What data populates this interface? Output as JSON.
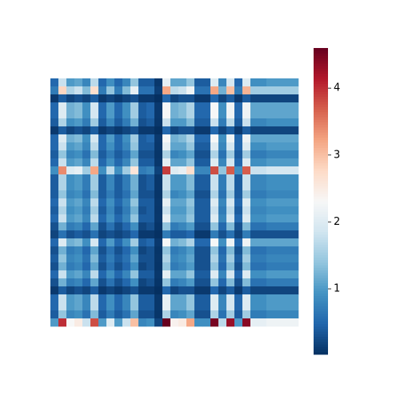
{
  "chart_data": {
    "type": "heatmap",
    "colormap": "RdBu_r",
    "clim": [
      0.02,
      4.6
    ],
    "cticks": [
      1,
      2,
      3,
      4
    ],
    "values": [
      [
        0.5,
        1.8,
        1.0,
        1.1,
        0.8,
        1.7,
        0.5,
        0.9,
        0.5,
        0.8,
        1.4,
        0.4,
        0.4,
        0.09,
        2.1,
        1.1,
        1.1,
        1.4,
        0.4,
        0.4,
        2.0,
        0.8,
        1.9,
        0.5,
        2.0,
        0.9,
        0.9,
        1.0,
        1.0,
        1.0,
        1.0
      ],
      [
        0.7,
        2.8,
        1.6,
        1.8,
        1.3,
        2.7,
        0.7,
        1.4,
        0.7,
        1.3,
        2.1,
        0.6,
        0.6,
        0.14,
        3.2,
        1.7,
        1.8,
        2.2,
        0.6,
        0.6,
        3.2,
        1.2,
        3.0,
        0.7,
        3.1,
        1.5,
        1.5,
        1.5,
        1.5,
        1.5,
        1.5
      ],
      [
        0.1,
        0.4,
        0.2,
        0.3,
        0.2,
        0.4,
        0.1,
        0.2,
        0.1,
        0.2,
        0.3,
        0.1,
        0.1,
        0.02,
        0.5,
        0.2,
        0.3,
        0.3,
        0.1,
        0.1,
        0.5,
        0.2,
        0.4,
        0.1,
        0.4,
        0.2,
        0.2,
        0.2,
        0.2,
        0.2,
        0.2
      ],
      [
        0.5,
        2.0,
        1.2,
        1.3,
        0.9,
        1.9,
        0.5,
        1.0,
        0.5,
        0.9,
        1.5,
        0.4,
        0.5,
        0.1,
        2.3,
        1.2,
        1.3,
        1.6,
        0.5,
        0.5,
        2.3,
        0.9,
        2.2,
        0.5,
        2.2,
        1.1,
        1.1,
        1.1,
        1.1,
        1.1,
        1.1
      ],
      [
        0.5,
        2.0,
        1.2,
        1.3,
        0.9,
        1.9,
        0.5,
        1.0,
        0.5,
        0.9,
        1.5,
        0.4,
        0.5,
        0.1,
        2.3,
        1.2,
        1.3,
        1.6,
        0.5,
        0.5,
        2.3,
        0.9,
        2.2,
        0.5,
        2.2,
        1.1,
        1.1,
        1.1,
        1.1,
        1.1,
        1.1
      ],
      [
        0.4,
        1.6,
        0.9,
        1.0,
        0.7,
        1.5,
        0.4,
        0.8,
        0.4,
        0.7,
        1.2,
        0.3,
        0.4,
        0.08,
        1.8,
        1.0,
        1.0,
        1.3,
        0.4,
        0.4,
        1.8,
        0.7,
        1.7,
        0.4,
        1.8,
        0.8,
        0.8,
        0.9,
        0.9,
        0.9,
        0.9
      ],
      [
        0.1,
        0.4,
        0.2,
        0.3,
        0.2,
        0.4,
        0.1,
        0.2,
        0.1,
        0.2,
        0.3,
        0.1,
        0.1,
        0.02,
        0.5,
        0.2,
        0.3,
        0.3,
        0.1,
        0.1,
        0.5,
        0.2,
        0.4,
        0.1,
        0.4,
        0.2,
        0.2,
        0.2,
        0.2,
        0.2,
        0.2
      ],
      [
        0.5,
        2.0,
        1.2,
        1.3,
        0.9,
        1.9,
        0.5,
        1.0,
        0.5,
        0.9,
        1.5,
        0.4,
        0.5,
        0.1,
        2.3,
        1.2,
        1.3,
        1.6,
        0.5,
        0.5,
        2.3,
        0.9,
        2.2,
        0.5,
        2.2,
        1.1,
        1.1,
        1.1,
        1.1,
        1.1,
        1.1
      ],
      [
        0.5,
        1.8,
        1.0,
        1.1,
        0.8,
        1.7,
        0.5,
        0.9,
        0.5,
        0.8,
        1.4,
        0.4,
        0.4,
        0.09,
        2.1,
        1.1,
        1.1,
        1.4,
        0.4,
        0.4,
        2.0,
        0.8,
        1.9,
        0.5,
        2.0,
        0.9,
        0.9,
        1.0,
        1.0,
        1.0,
        1.0
      ],
      [
        0.4,
        1.4,
        0.8,
        0.9,
        0.6,
        1.3,
        0.4,
        0.7,
        0.4,
        0.6,
        1.1,
        0.3,
        0.3,
        0.07,
        1.6,
        0.8,
        0.9,
        1.1,
        0.3,
        0.3,
        1.6,
        0.6,
        1.5,
        0.4,
        1.5,
        0.7,
        0.7,
        0.8,
        0.8,
        0.8,
        0.8
      ],
      [
        0.5,
        1.8,
        1.0,
        1.1,
        0.8,
        1.7,
        0.5,
        0.9,
        0.5,
        0.8,
        1.4,
        0.4,
        0.4,
        0.09,
        2.1,
        1.1,
        1.1,
        1.4,
        0.4,
        0.4,
        2.0,
        0.8,
        1.9,
        0.5,
        2.0,
        0.9,
        0.9,
        1.0,
        1.0,
        1.0,
        1.0
      ],
      [
        0.9,
        3.4,
        2.0,
        2.1,
        1.5,
        3.2,
        0.9,
        1.7,
        0.9,
        1.5,
        2.6,
        0.7,
        0.8,
        0.17,
        3.9,
        2.0,
        2.1,
        2.7,
        0.8,
        0.8,
        3.8,
        1.4,
        3.7,
        0.9,
        3.7,
        1.8,
        1.8,
        1.9,
        1.9,
        1.9,
        1.9
      ],
      [
        0.4,
        1.6,
        0.9,
        1.0,
        0.7,
        1.5,
        0.4,
        0.8,
        0.4,
        0.7,
        1.2,
        0.3,
        0.4,
        0.08,
        1.8,
        1.0,
        1.0,
        1.3,
        0.4,
        0.4,
        1.8,
        0.7,
        1.7,
        0.4,
        1.8,
        0.8,
        0.8,
        0.9,
        0.9,
        0.9,
        0.9
      ],
      [
        0.4,
        1.6,
        0.9,
        1.0,
        0.7,
        1.5,
        0.4,
        0.8,
        0.4,
        0.7,
        1.2,
        0.3,
        0.4,
        0.08,
        1.8,
        1.0,
        1.0,
        1.3,
        0.4,
        0.4,
        1.8,
        0.7,
        1.7,
        0.4,
        1.8,
        0.8,
        0.8,
        0.9,
        0.9,
        0.9,
        0.9
      ],
      [
        0.4,
        1.4,
        0.8,
        0.9,
        0.6,
        1.3,
        0.4,
        0.7,
        0.4,
        0.6,
        1.1,
        0.3,
        0.3,
        0.07,
        1.6,
        0.8,
        0.9,
        1.1,
        0.3,
        0.3,
        1.6,
        0.6,
        1.5,
        0.4,
        1.5,
        0.7,
        0.7,
        0.8,
        0.8,
        0.8,
        0.8
      ],
      [
        0.5,
        1.8,
        1.0,
        1.1,
        0.8,
        1.7,
        0.5,
        0.9,
        0.5,
        0.8,
        1.4,
        0.4,
        0.4,
        0.09,
        2.1,
        1.1,
        1.1,
        1.4,
        0.4,
        0.4,
        2.0,
        0.8,
        1.9,
        0.5,
        2.0,
        0.9,
        0.9,
        1.0,
        1.0,
        1.0,
        1.0
      ],
      [
        0.4,
        1.6,
        0.9,
        1.0,
        0.7,
        1.5,
        0.4,
        0.8,
        0.4,
        0.7,
        1.2,
        0.3,
        0.4,
        0.08,
        1.8,
        1.0,
        1.0,
        1.3,
        0.4,
        0.4,
        1.8,
        0.7,
        1.7,
        0.4,
        1.8,
        0.8,
        0.8,
        0.9,
        0.9,
        0.9,
        0.9
      ],
      [
        0.5,
        1.8,
        1.0,
        1.1,
        0.8,
        1.7,
        0.5,
        0.9,
        0.5,
        0.8,
        1.4,
        0.4,
        0.4,
        0.09,
        2.1,
        1.1,
        1.1,
        1.4,
        0.4,
        0.4,
        2.0,
        0.8,
        1.9,
        0.5,
        2.0,
        0.9,
        0.9,
        1.0,
        1.0,
        1.0,
        1.0
      ],
      [
        0.3,
        1.2,
        0.7,
        0.8,
        0.5,
        1.1,
        0.3,
        0.6,
        0.3,
        0.5,
        0.9,
        0.2,
        0.3,
        0.06,
        1.4,
        0.7,
        0.8,
        1.0,
        0.3,
        0.3,
        1.4,
        0.5,
        1.3,
        0.3,
        1.3,
        0.6,
        0.6,
        0.7,
        0.7,
        0.7,
        0.7
      ],
      [
        0.2,
        0.6,
        0.3,
        0.4,
        0.3,
        0.6,
        0.2,
        0.3,
        0.2,
        0.3,
        0.5,
        0.1,
        0.1,
        0.03,
        0.7,
        0.4,
        0.4,
        0.5,
        0.1,
        0.1,
        0.7,
        0.3,
        0.6,
        0.2,
        0.7,
        0.3,
        0.3,
        0.3,
        0.3,
        0.3,
        0.3
      ],
      [
        0.5,
        2.0,
        1.2,
        1.3,
        0.9,
        1.9,
        0.5,
        1.0,
        0.5,
        0.9,
        1.5,
        0.4,
        0.5,
        0.1,
        2.3,
        1.2,
        1.3,
        1.6,
        0.5,
        0.5,
        2.3,
        0.9,
        2.2,
        0.5,
        2.2,
        1.1,
        1.1,
        1.1,
        1.1,
        1.1,
        1.1
      ],
      [
        0.3,
        1.2,
        0.7,
        0.8,
        0.5,
        1.1,
        0.3,
        0.6,
        0.3,
        0.5,
        0.9,
        0.2,
        0.3,
        0.06,
        1.4,
        0.7,
        0.8,
        1.0,
        0.3,
        0.3,
        1.4,
        0.5,
        1.3,
        0.3,
        1.3,
        0.6,
        0.6,
        0.7,
        0.7,
        0.7,
        0.7
      ],
      [
        0.4,
        1.4,
        0.8,
        0.9,
        0.6,
        1.3,
        0.4,
        0.7,
        0.4,
        0.6,
        1.1,
        0.3,
        0.3,
        0.07,
        1.6,
        0.8,
        0.9,
        1.1,
        0.3,
        0.3,
        1.6,
        0.6,
        1.5,
        0.4,
        1.5,
        0.7,
        0.7,
        0.8,
        0.8,
        0.8,
        0.8
      ],
      [
        0.3,
        1.2,
        0.7,
        0.8,
        0.5,
        1.1,
        0.3,
        0.6,
        0.3,
        0.5,
        0.9,
        0.2,
        0.3,
        0.06,
        1.4,
        0.7,
        0.8,
        1.0,
        0.3,
        0.3,
        1.4,
        0.5,
        1.3,
        0.3,
        1.3,
        0.6,
        0.6,
        0.7,
        0.7,
        0.7,
        0.7
      ],
      [
        0.5,
        1.8,
        1.0,
        1.1,
        0.8,
        1.7,
        0.5,
        0.9,
        0.5,
        0.8,
        1.4,
        0.4,
        0.4,
        0.09,
        2.1,
        1.1,
        1.1,
        1.4,
        0.4,
        0.4,
        2.0,
        0.8,
        1.9,
        0.5,
        2.0,
        0.9,
        0.9,
        1.0,
        1.0,
        1.0,
        1.0
      ],
      [
        0.3,
        1.2,
        0.7,
        0.8,
        0.5,
        1.1,
        0.3,
        0.6,
        0.3,
        0.5,
        0.9,
        0.2,
        0.3,
        0.06,
        1.4,
        0.7,
        0.8,
        1.0,
        0.3,
        0.3,
        1.4,
        0.5,
        1.3,
        0.3,
        1.3,
        0.6,
        0.6,
        0.7,
        0.7,
        0.7,
        0.7
      ],
      [
        0.1,
        0.4,
        0.2,
        0.3,
        0.2,
        0.4,
        0.1,
        0.2,
        0.1,
        0.2,
        0.3,
        0.1,
        0.1,
        0.02,
        0.5,
        0.2,
        0.3,
        0.3,
        0.1,
        0.1,
        0.5,
        0.2,
        0.4,
        0.1,
        0.4,
        0.2,
        0.2,
        0.2,
        0.2,
        0.2,
        0.2
      ],
      [
        0.5,
        1.8,
        1.0,
        1.1,
        0.8,
        1.7,
        0.5,
        0.9,
        0.5,
        0.8,
        1.4,
        0.4,
        0.4,
        0.09,
        2.1,
        1.1,
        1.1,
        1.4,
        0.4,
        0.4,
        2.0,
        0.8,
        1.9,
        0.5,
        2.0,
        0.9,
        0.9,
        1.0,
        1.0,
        1.0,
        1.0
      ],
      [
        0.5,
        1.8,
        1.0,
        1.1,
        0.8,
        1.7,
        0.5,
        0.9,
        0.5,
        0.8,
        1.4,
        0.4,
        0.4,
        0.09,
        2.1,
        1.1,
        1.1,
        1.4,
        0.4,
        0.4,
        2.0,
        0.8,
        1.9,
        0.5,
        2.0,
        0.9,
        0.9,
        1.0,
        1.0,
        1.0,
        1.0
      ],
      [
        0.4,
        1.4,
        0.8,
        0.9,
        0.6,
        1.3,
        0.4,
        0.7,
        0.4,
        0.6,
        1.1,
        0.3,
        0.3,
        0.07,
        1.6,
        0.8,
        0.9,
        1.1,
        0.3,
        0.3,
        1.6,
        0.6,
        1.5,
        0.4,
        1.5,
        0.7,
        0.7,
        0.8,
        0.8,
        0.8,
        0.8
      ],
      [
        1.0,
        4.0,
        2.3,
        2.5,
        1.8,
        3.8,
        1.0,
        2.0,
        1.0,
        1.8,
        3.0,
        0.8,
        0.9,
        0.2,
        4.6,
        2.4,
        2.5,
        3.2,
        0.9,
        0.9,
        4.5,
        1.7,
        4.3,
        1.0,
        4.4,
        2.1,
        2.1,
        2.2,
        2.2,
        2.2,
        2.2
      ]
    ]
  }
}
